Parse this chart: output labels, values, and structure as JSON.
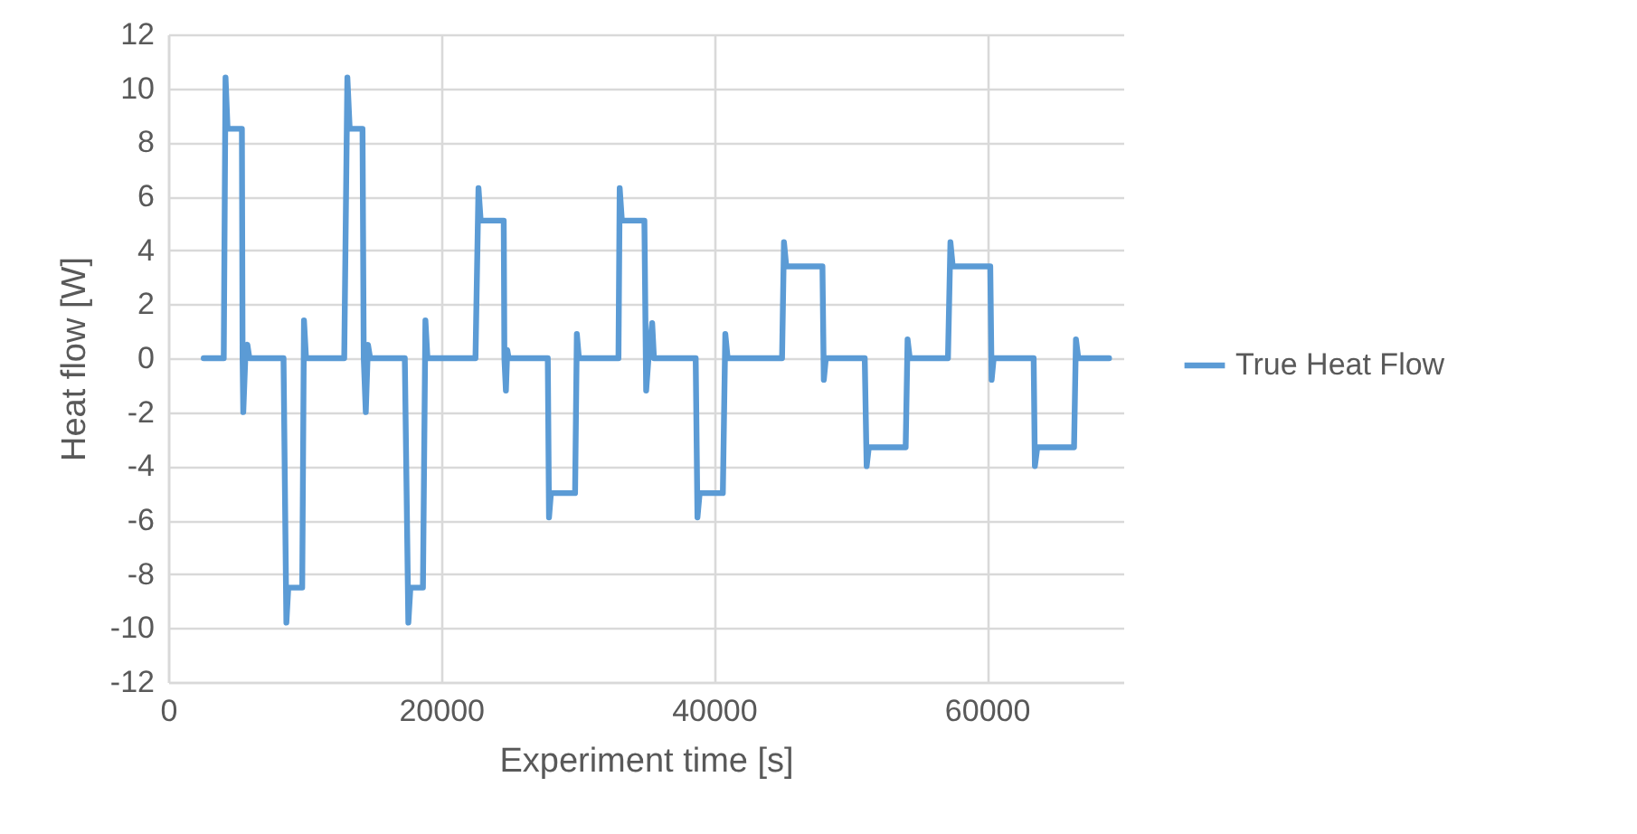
{
  "chart_data": {
    "type": "line",
    "xlabel": "Experiment time [s]",
    "ylabel": "Heat flow [W]",
    "xlim": [
      0,
      70000
    ],
    "xticks": [
      0,
      20000,
      40000,
      60000
    ],
    "ylim": [
      -12,
      12
    ],
    "yticks": [
      -12,
      -10,
      -8,
      -6,
      -4,
      -2,
      0,
      2,
      4,
      6,
      8,
      10,
      12
    ],
    "grid": true,
    "legend": "right",
    "marker": "none",
    "line_style": "solid",
    "series": [
      {
        "name": "True Heat Flow",
        "color": "#5b9bd5",
        "x": [
          2600,
          4070,
          4200,
          4350,
          5400,
          5450,
          5500,
          5650,
          5800,
          5950,
          8450,
          8660,
          8800,
          9820,
          9950,
          10100,
          12900,
          13130,
          13300,
          14240,
          14330,
          14480,
          14640,
          14800,
          17340,
          17600,
          17750,
          18670,
          18850,
          19000,
          22520,
          22740,
          22900,
          24590,
          24640,
          24750,
          24850,
          24950,
          27820,
          27910,
          28050,
          29820,
          29950,
          30100,
          33000,
          33090,
          33250,
          34900,
          35030,
          35200,
          35470,
          35600,
          38660,
          38790,
          38950,
          40650,
          40830,
          41000,
          44990,
          45130,
          45300,
          47950,
          48050,
          48200,
          51050,
          51190,
          51350,
          54050,
          54190,
          54350,
          57150,
          57330,
          57500,
          60250,
          60350,
          60500,
          63430,
          63520,
          63700,
          66390,
          66530,
          66700,
          68960
        ],
        "values": [
          0,
          0,
          10.4,
          8.5,
          8.5,
          0,
          -2,
          0,
          0.5,
          0,
          0,
          -9.8,
          -8.5,
          -8.5,
          1.4,
          0,
          0,
          10.4,
          8.5,
          8.5,
          0,
          -2,
          0.5,
          0,
          0,
          -9.8,
          -8.5,
          -8.5,
          1.4,
          0,
          0,
          6.3,
          5.1,
          5.1,
          0,
          -1.2,
          0.3,
          0,
          0,
          -5.9,
          -5,
          -5,
          0.9,
          0,
          0,
          6.3,
          5.1,
          5.1,
          -1.2,
          0,
          1.3,
          0,
          0,
          -5.9,
          -5,
          -5,
          0.9,
          0,
          0,
          4.3,
          3.4,
          3.4,
          -0.8,
          0,
          0,
          -4,
          -3.3,
          -3.3,
          0.7,
          0,
          0,
          4.3,
          3.4,
          3.4,
          -0.8,
          0,
          0,
          -4,
          -3.3,
          -3.3,
          0.7,
          0,
          0
        ]
      }
    ]
  }
}
